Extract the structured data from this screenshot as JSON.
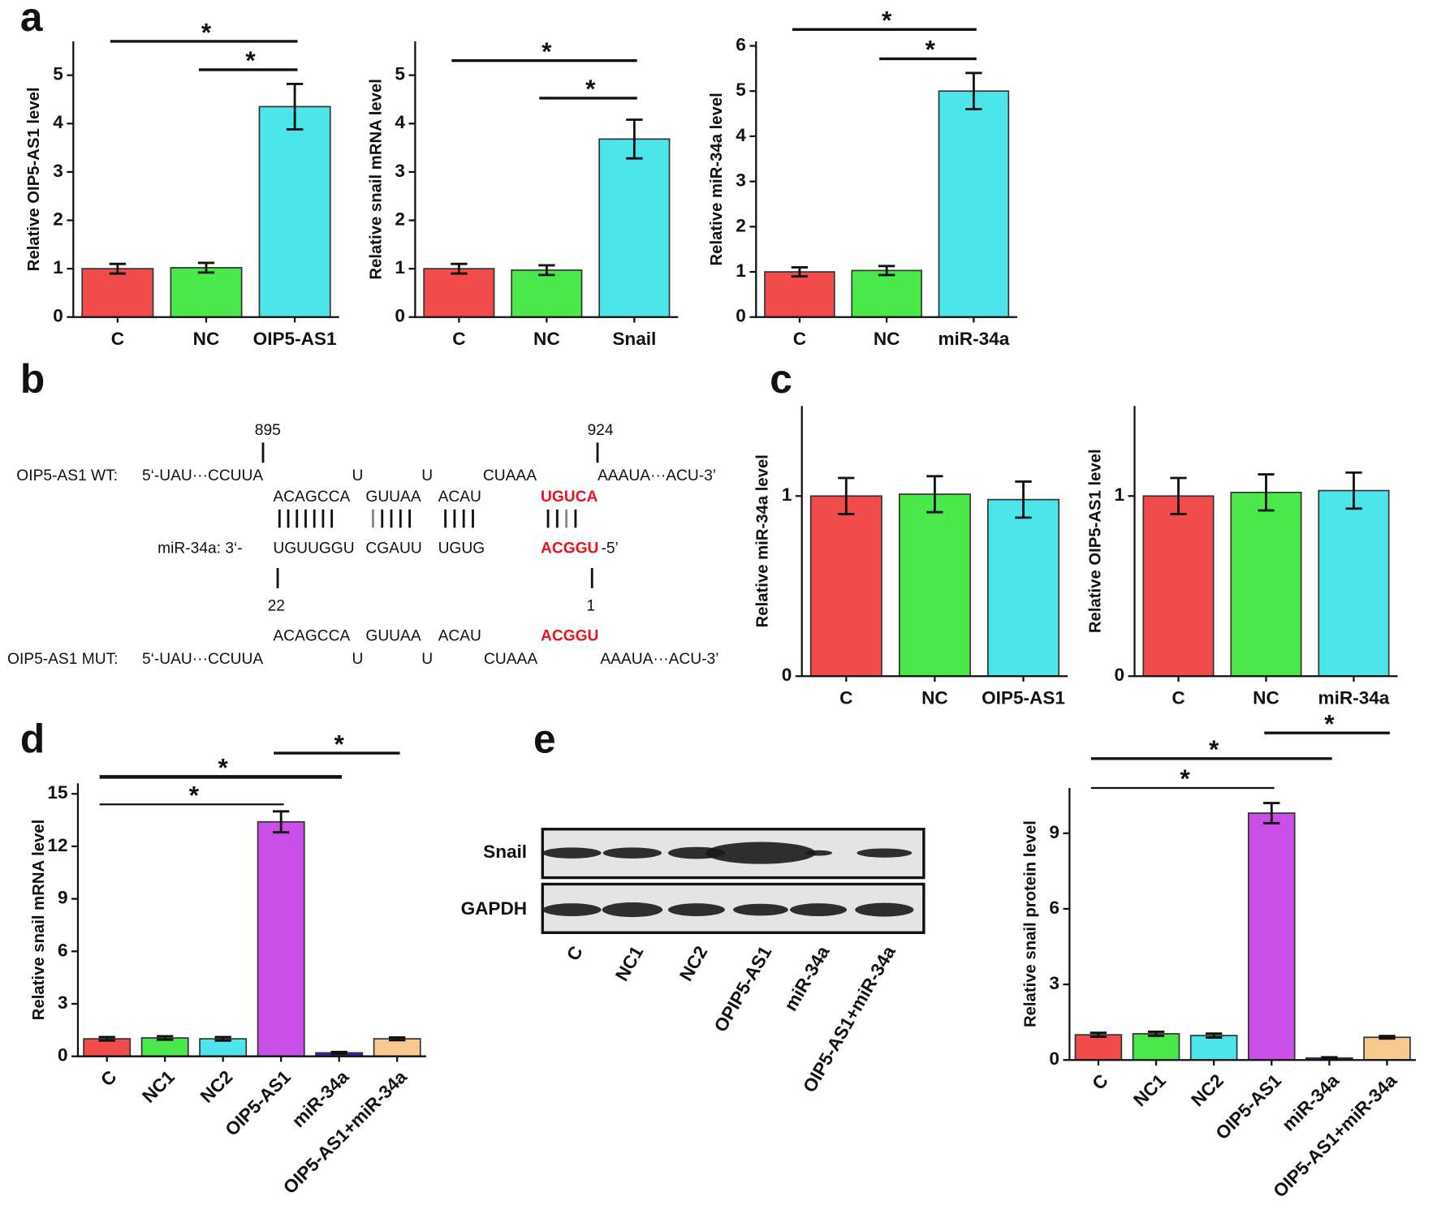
{
  "panel_labels": [
    "a",
    "b",
    "c",
    "d",
    "e"
  ],
  "chart_data": [
    {
      "type": "bar",
      "y_label": "Relative OIP5-AS1 level",
      "categories": [
        "C",
        "NC",
        "OIP5-AS1"
      ],
      "values": [
        1.0,
        1.02,
        4.35
      ],
      "errors": [
        0.1,
        0.1,
        0.47
      ],
      "colors": [
        "#f24b4b",
        "#4be84b",
        "#4ce6ea"
      ],
      "ylim": [
        0,
        5.7
      ],
      "yticks": [
        0,
        1,
        2,
        3,
        4,
        5
      ],
      "comparisons": [
        {
          "groups": [
            "C",
            "OIP5-AS1"
          ],
          "label": "*"
        },
        {
          "groups": [
            "NC",
            "OIP5-AS1"
          ],
          "label": "*"
        }
      ]
    },
    {
      "type": "bar",
      "y_label": "Relative snail mRNA level",
      "categories": [
        "C",
        "NC",
        "Snail"
      ],
      "values": [
        1.0,
        0.97,
        3.68
      ],
      "errors": [
        0.1,
        0.1,
        0.4
      ],
      "colors": [
        "#f24b4b",
        "#4be84b",
        "#4ce6ea"
      ],
      "ylim": [
        0,
        5.7
      ],
      "yticks": [
        0,
        1,
        2,
        3,
        4,
        5
      ],
      "comparisons": [
        {
          "groups": [
            "C",
            "Snail"
          ],
          "label": "*"
        },
        {
          "groups": [
            "NC",
            "Snail"
          ],
          "label": "*"
        }
      ]
    },
    {
      "type": "bar",
      "y_label": "Relative  miR-34a level",
      "categories": [
        "C",
        "NC",
        "miR-34a"
      ],
      "values": [
        1.0,
        1.03,
        5.0
      ],
      "errors": [
        0.1,
        0.1,
        0.4
      ],
      "colors": [
        "#f24b4b",
        "#4be84b",
        "#4ce6ea"
      ],
      "ylim": [
        0,
        6.1
      ],
      "yticks": [
        0,
        1,
        2,
        3,
        4,
        5,
        6
      ],
      "comparisons": [
        {
          "groups": [
            "C",
            "miR-34a"
          ],
          "label": "*"
        },
        {
          "groups": [
            "NC",
            "miR-34a"
          ],
          "label": "*"
        }
      ]
    },
    {
      "type": "bar",
      "y_label": "Relative miR-34a level",
      "categories": [
        "C",
        "NC",
        "OIP5-AS1"
      ],
      "values": [
        1.0,
        1.01,
        0.98
      ],
      "errors": [
        0.1,
        0.1,
        0.1
      ],
      "colors": [
        "#f24b4b",
        "#4be84b",
        "#4ce6ea"
      ],
      "ylim": [
        0,
        1.5
      ],
      "yticks": [
        0,
        1
      ],
      "comparisons": []
    },
    {
      "type": "bar",
      "y_label": "Relative OIP5-AS1 level",
      "categories": [
        "C",
        "NC",
        "miR-34a"
      ],
      "values": [
        1.0,
        1.02,
        1.03
      ],
      "errors": [
        0.1,
        0.1,
        0.1
      ],
      "colors": [
        "#f24b4b",
        "#4be84b",
        "#4ce6ea"
      ],
      "ylim": [
        0,
        1.5
      ],
      "yticks": [
        0,
        1
      ],
      "comparisons": []
    },
    {
      "type": "bar",
      "y_label": "Relative snail mRNA level",
      "categories": [
        "C",
        "NC1",
        "NC2",
        "OIP5-AS1",
        "miR-34a",
        "OIP5-AS1+miR-34a"
      ],
      "values": [
        1.0,
        1.05,
        1.0,
        13.4,
        0.2,
        1.0
      ],
      "errors": [
        0.1,
        0.1,
        0.1,
        0.6,
        0.05,
        0.08
      ],
      "colors": [
        "#f24b4b",
        "#4be84b",
        "#4ce6ea",
        "#c94fe8",
        "#2a2aa8",
        "#f7c98f"
      ],
      "ylim": [
        0,
        15.6
      ],
      "yticks": [
        0,
        3,
        6,
        9,
        12,
        15
      ],
      "comparisons": [
        {
          "groups": [
            "OIP5-AS1",
            "OIP5-AS1+miR-34a"
          ],
          "label": "*"
        },
        {
          "groups": [
            "C",
            "miR-34a"
          ],
          "label": "*"
        },
        {
          "groups": [
            "C",
            "OIP5-AS1"
          ],
          "label": "*"
        }
      ]
    },
    {
      "type": "bar",
      "y_label": "Relative snail protein level",
      "categories": [
        "C",
        "NC1",
        "NC2",
        "OIP5-AS1",
        "miR-34a",
        "OIP5-AS1+miR-34a"
      ],
      "values": [
        1.0,
        1.04,
        0.97,
        9.8,
        0.08,
        0.9
      ],
      "errors": [
        0.08,
        0.08,
        0.08,
        0.4,
        0.03,
        0.05
      ],
      "colors": [
        "#f24b4b",
        "#4be84b",
        "#4ce6ea",
        "#c94fe8",
        "#2a2aa8",
        "#f7c98f"
      ],
      "ylim": [
        0,
        10.8
      ],
      "yticks": [
        0,
        3,
        6,
        9
      ],
      "comparisons": [
        {
          "groups": [
            "OIP5-AS1",
            "OIP5-AS1+miR-34a"
          ],
          "label": "*"
        },
        {
          "groups": [
            "C",
            "miR-34a"
          ],
          "label": "*"
        },
        {
          "groups": [
            "C",
            "OIP5-AS1"
          ],
          "label": "*"
        }
      ]
    }
  ],
  "diagram": {
    "rows": [
      [
        "895",
        "924"
      ],
      [
        "OIP5-AS1 WT:",
        "5‘-UAU···CCUUA",
        "U",
        "U",
        "CUAAA",
        "AAAUA···ACU-3’"
      ],
      [
        "ACAGCCA",
        "GUUAA",
        "ACAU",
        "UGUCA"
      ],
      [
        "miR-34a: 3‘-",
        "UGUUGGU",
        "CGAUU",
        "UGUG",
        "ACGGU",
        "-5’"
      ],
      [
        "22",
        "1"
      ],
      [
        "ACAGCCA",
        "GUUAA",
        "ACAU",
        "ACGGU"
      ],
      [
        "OIP5-AS1 MUT:",
        "5‘-UAU···CCUUA",
        "U",
        "U",
        "CUAAA",
        "AAAUA···ACU-3’"
      ]
    ]
  },
  "blot": {
    "rows": [
      "Snail",
      "GAPDH"
    ],
    "lanes": [
      "C",
      "NC1",
      "NC2",
      "OPIP5-AS1",
      "miR-34a",
      "OIP5-AS1+miR-34a"
    ]
  }
}
